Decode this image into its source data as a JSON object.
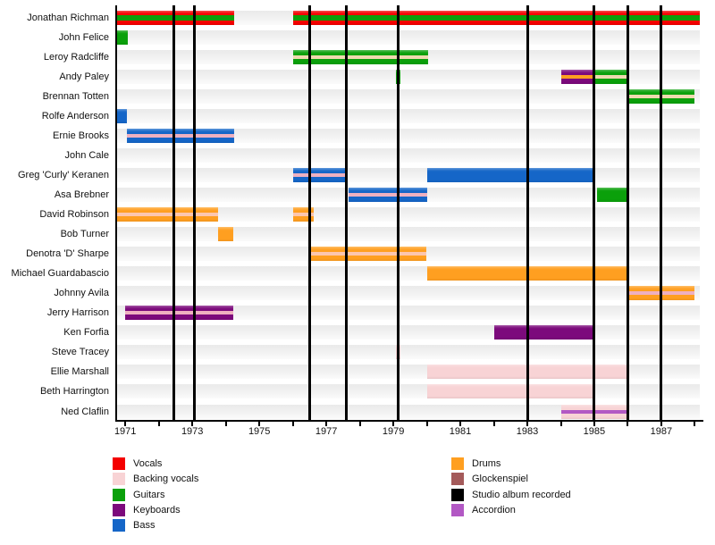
{
  "chart_data": {
    "type": "bar",
    "variant": "gantt-timeline",
    "title": "",
    "x_axis": {
      "start": 1970.7,
      "end": 1988.15,
      "label_years": [
        1971,
        1973,
        1975,
        1977,
        1979,
        1981,
        1983,
        1985,
        1987
      ],
      "minor_tick_first": 1971,
      "minor_tick_last": 1988
    },
    "album_recorded_years": [
      1972.45,
      1973.05,
      1976.5,
      1977.6,
      1979.15,
      1983.0,
      1985.0,
      1986.0,
      1987.0
    ],
    "colors": {
      "vocals": "#f40000",
      "backing_vocals": "#f8d3d5",
      "guitars": "#0ba00b",
      "keyboards": "#7c0a7c",
      "bass": "#1566c8",
      "drums": "#ff9f20",
      "glockenspiel": "#a45a5a",
      "studio_album": "#000000",
      "accordion": "#b258c4",
      "stripe_pink": "#eeb0c0",
      "stripe_wheat": "#eedaaf",
      "stripe_peach": "#fcc6ae"
    },
    "members": [
      {
        "name": "Jonathan Richman",
        "bars": [
          {
            "start": 1970.7,
            "end": 1974.25,
            "color": "#f40000",
            "instrument": "vocals",
            "stripe": "#0ba00b",
            "stripe_instrument": "guitars",
            "stripe_h": 6
          },
          {
            "start": 1976.0,
            "end": 1988.15,
            "color": "#f40000",
            "instrument": "vocals",
            "stripe": "#0ba00b",
            "stripe_instrument": "guitars",
            "stripe_h": 6
          }
        ]
      },
      {
        "name": "John Felice",
        "bars": [
          {
            "start": 1970.7,
            "end": 1971.08,
            "color": "#0ba00b",
            "instrument": "guitars",
            "stripe": null
          }
        ]
      },
      {
        "name": "Leroy Radcliffe",
        "bars": [
          {
            "start": 1976.0,
            "end": 1980.05,
            "color": "#0ba00b",
            "instrument": "guitars",
            "stripe": "#eedaaf",
            "stripe_instrument": "backing_vocals"
          }
        ]
      },
      {
        "name": "Andy Paley",
        "bars": [
          {
            "start": 1979.08,
            "end": 1979.2,
            "color": "#0ba00b",
            "instrument": "guitars",
            "stripe": null
          },
          {
            "start": 1984.0,
            "end": 1985.0,
            "color": "#7c0a7c",
            "instrument": "keyboards",
            "stripe": "#ff9f20",
            "stripe_instrument": "drums"
          },
          {
            "start": 1985.0,
            "end": 1986.0,
            "color": "#0ba00b",
            "instrument": "guitars",
            "stripe": "#eedaaf",
            "stripe_instrument": "backing_vocals"
          }
        ]
      },
      {
        "name": "Brennan Totten",
        "bars": [
          {
            "start": 1986.0,
            "end": 1988.0,
            "color": "#0ba00b",
            "instrument": "guitars",
            "stripe": "#eedaaf",
            "stripe_instrument": "backing_vocals"
          }
        ]
      },
      {
        "name": "Rolfe Anderson",
        "bars": [
          {
            "start": 1970.7,
            "end": 1971.05,
            "color": "#1566c8",
            "instrument": "bass",
            "stripe": null
          }
        ]
      },
      {
        "name": "Ernie Brooks",
        "bars": [
          {
            "start": 1971.05,
            "end": 1974.25,
            "color": "#1566c8",
            "instrument": "bass",
            "stripe": "#eeb0c0",
            "stripe_instrument": "backing_vocals"
          }
        ]
      },
      {
        "name": "John Cale",
        "bars": []
      },
      {
        "name": "Greg 'Curly' Keranen",
        "bars": [
          {
            "start": 1976.0,
            "end": 1977.65,
            "color": "#1566c8",
            "instrument": "bass",
            "stripe": "#eeb0c0",
            "stripe_instrument": "backing_vocals"
          },
          {
            "start": 1980.0,
            "end": 1985.0,
            "color": "#1566c8",
            "instrument": "bass",
            "stripe": null
          }
        ]
      },
      {
        "name": "Asa Brebner",
        "bars": [
          {
            "start": 1977.65,
            "end": 1980.0,
            "color": "#1566c8",
            "instrument": "bass",
            "stripe": "#eeb0c0",
            "stripe_instrument": "backing_vocals"
          },
          {
            "start": 1985.07,
            "end": 1986.0,
            "color": "#0ba00b",
            "instrument": "guitars",
            "stripe": null
          }
        ]
      },
      {
        "name": "David Robinson",
        "bars": [
          {
            "start": 1970.7,
            "end": 1973.77,
            "color": "#ff9f20",
            "instrument": "drums",
            "stripe": "#fcc6ae",
            "stripe_instrument": "backing_vocals"
          },
          {
            "start": 1976.0,
            "end": 1976.62,
            "color": "#ff9f20",
            "instrument": "drums",
            "stripe": "#fcc6ae",
            "stripe_instrument": "backing_vocals"
          }
        ]
      },
      {
        "name": "Bob Turner",
        "bars": [
          {
            "start": 1973.77,
            "end": 1974.22,
            "color": "#ff9f20",
            "instrument": "drums",
            "stripe": null
          }
        ]
      },
      {
        "name": "Denotra 'D' Sharpe",
        "bars": [
          {
            "start": 1976.55,
            "end": 1980.0,
            "color": "#ff9f20",
            "instrument": "drums",
            "stripe": "#fcc6ae",
            "stripe_instrument": "backing_vocals"
          }
        ]
      },
      {
        "name": "Michael Guardabascio",
        "bars": [
          {
            "start": 1980.0,
            "end": 1986.0,
            "color": "#ff9f20",
            "instrument": "drums",
            "stripe": null
          }
        ]
      },
      {
        "name": "Johnny Avila",
        "bars": [
          {
            "start": 1986.0,
            "end": 1988.0,
            "color": "#ff9f20",
            "instrument": "drums",
            "stripe": "#eeb0c0",
            "stripe_instrument": "backing_vocals"
          }
        ]
      },
      {
        "name": "Jerry Harrison",
        "bars": [
          {
            "start": 1971.0,
            "end": 1974.22,
            "color": "#7c0a7c",
            "instrument": "keyboards",
            "stripe": "#eeb0c0",
            "stripe_instrument": "backing_vocals"
          }
        ]
      },
      {
        "name": "Ken Forfia",
        "bars": [
          {
            "start": 1982.0,
            "end": 1985.0,
            "color": "#7c0a7c",
            "instrument": "keyboards",
            "stripe": null
          }
        ]
      },
      {
        "name": "Steve Tracey",
        "bars": [
          {
            "start": 1979.08,
            "end": 1979.2,
            "color": "#f8d3d5",
            "instrument": "backing_vocals",
            "stripe": null
          }
        ]
      },
      {
        "name": "Ellie Marshall",
        "bars": [
          {
            "start": 1980.0,
            "end": 1986.0,
            "color": "#f8d3d5",
            "instrument": "backing_vocals",
            "stripe": null
          }
        ]
      },
      {
        "name": "Beth Harrington",
        "bars": [
          {
            "start": 1980.0,
            "end": 1985.0,
            "color": "#f8d3d5",
            "instrument": "backing_vocals",
            "stripe": null
          }
        ]
      },
      {
        "name": "Ned Claflin",
        "bars": [
          {
            "start": 1984.0,
            "end": 1986.0,
            "color": "#f8d3d5",
            "instrument": "backing_vocals",
            "stripe": "#b258c4",
            "stripe_instrument": "accordion"
          }
        ]
      }
    ],
    "legend": {
      "position": "bottom",
      "columns": [
        [
          {
            "label": "Vocals",
            "color": "#f40000"
          },
          {
            "label": "Backing vocals",
            "color": "#f8d3d5"
          },
          {
            "label": "Guitars",
            "color": "#0ba00b"
          },
          {
            "label": "Keyboards",
            "color": "#7c0a7c"
          },
          {
            "label": "Bass",
            "color": "#1566c8"
          }
        ],
        [
          {
            "label": "Drums",
            "color": "#ff9f20"
          },
          {
            "label": "Glockenspiel",
            "color": "#a45a5a"
          },
          {
            "label": "Studio album recorded",
            "color": "#000000"
          },
          {
            "label": "Accordion",
            "color": "#b258c4"
          }
        ]
      ]
    }
  }
}
